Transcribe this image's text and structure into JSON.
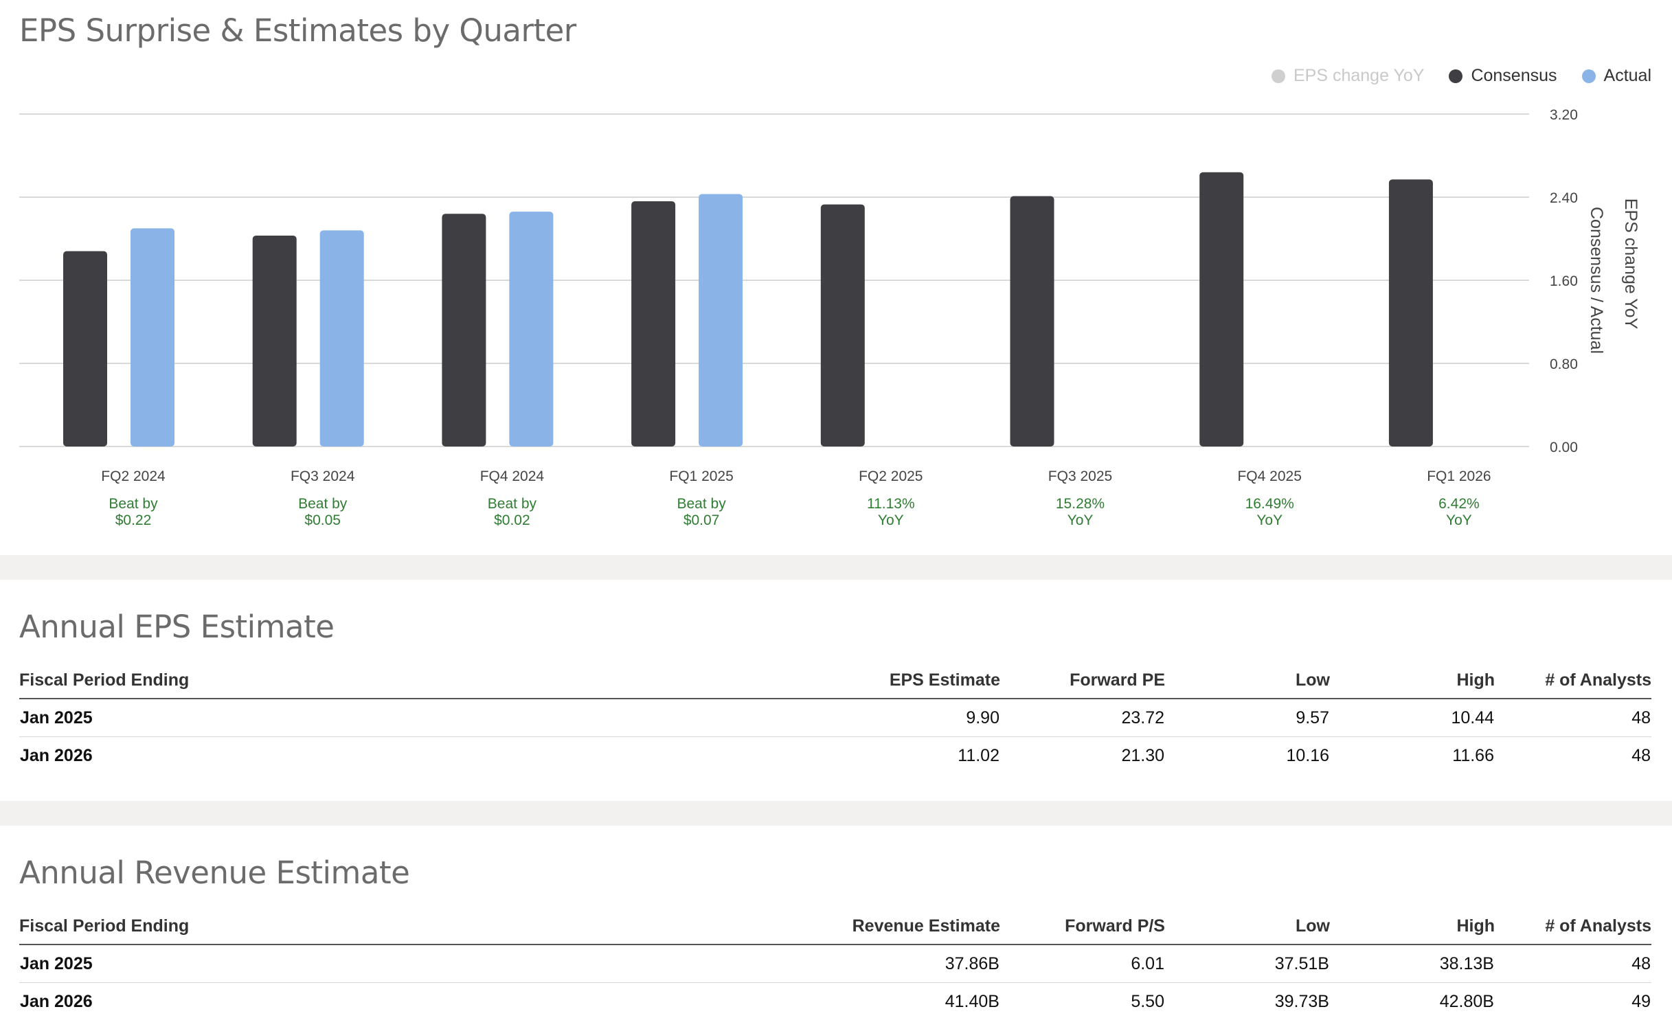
{
  "eps_chart": {
    "title": "EPS Surprise & Estimates by Quarter",
    "legend": [
      {
        "label": "EPS change YoY",
        "color": "#cfcfcf",
        "muted": true,
        "icon": "legend-dot-icon"
      },
      {
        "label": "Consensus",
        "color": "#3f3f43",
        "muted": false,
        "icon": "legend-dot-icon"
      },
      {
        "label": "Actual",
        "color": "#8ab4e8",
        "muted": false,
        "icon": "legend-dot-icon"
      }
    ],
    "y_ticks": [
      "3.20",
      "2.40",
      "1.60",
      "0.80",
      "0.00"
    ],
    "y_axis_labels": [
      "Consensus / Actual",
      "EPS change YoY"
    ],
    "annotations": [
      {
        "line1": "Beat by",
        "line2": "$0.22"
      },
      {
        "line1": "Beat by",
        "line2": "$0.05"
      },
      {
        "line1": "Beat by",
        "line2": "$0.02"
      },
      {
        "line1": "Beat by",
        "line2": "$0.07"
      },
      {
        "line1": "11.13%",
        "line2": "YoY"
      },
      {
        "line1": "15.28%",
        "line2": "YoY"
      },
      {
        "line1": "16.49%",
        "line2": "YoY"
      },
      {
        "line1": "6.42%",
        "line2": "YoY"
      }
    ],
    "annotation_color": "#2e7d32"
  },
  "chart_data": {
    "type": "bar",
    "title": "EPS Surprise & Estimates by Quarter",
    "categories": [
      "FQ2 2024",
      "FQ3 2024",
      "FQ4 2024",
      "FQ1 2025",
      "FQ2 2025",
      "FQ3 2025",
      "FQ4 2025",
      "FQ1 2026"
    ],
    "series": [
      {
        "name": "Consensus",
        "color": "#3f3f43",
        "values": [
          1.88,
          2.03,
          2.24,
          2.36,
          2.33,
          2.41,
          2.64,
          2.57
        ]
      },
      {
        "name": "Actual",
        "color": "#8ab4e8",
        "values": [
          2.1,
          2.08,
          2.26,
          2.43,
          null,
          null,
          null,
          null
        ]
      }
    ],
    "ylim": [
      0,
      3.2
    ],
    "grid": true,
    "legend_position": "top-right"
  },
  "eps_table": {
    "title": "Annual EPS Estimate",
    "headers": [
      "Fiscal Period Ending",
      "EPS Estimate",
      "Forward PE",
      "Low",
      "High",
      "# of Analysts"
    ],
    "rows": [
      [
        "Jan 2025",
        "9.90",
        "23.72",
        "9.57",
        "10.44",
        "48"
      ],
      [
        "Jan 2026",
        "11.02",
        "21.30",
        "10.16",
        "11.66",
        "48"
      ]
    ]
  },
  "revenue_table": {
    "title": "Annual Revenue Estimate",
    "headers": [
      "Fiscal Period Ending",
      "Revenue Estimate",
      "Forward P/S",
      "Low",
      "High",
      "# of Analysts"
    ],
    "rows": [
      [
        "Jan 2025",
        "37.86B",
        "6.01",
        "37.51B",
        "38.13B",
        "48"
      ],
      [
        "Jan 2026",
        "41.40B",
        "5.50",
        "39.73B",
        "42.80B",
        "49"
      ]
    ]
  }
}
